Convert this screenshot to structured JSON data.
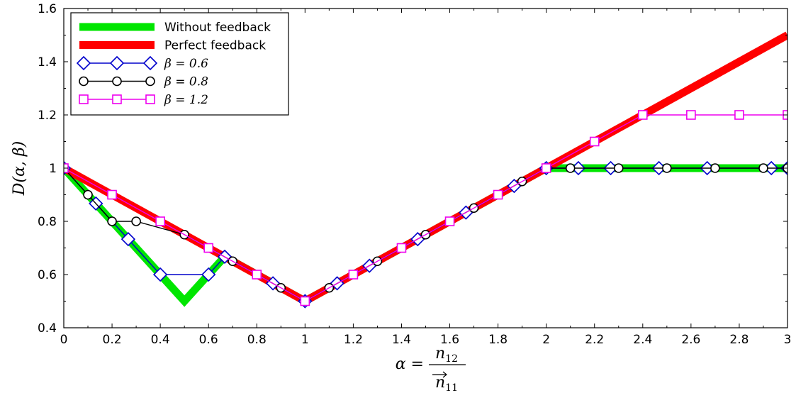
{
  "chart_data": {
    "type": "line",
    "xlabel": "α = n12 / n→11",
    "xlabel_parts": {
      "lhs": "α =",
      "num": "n",
      "num_sub": "12",
      "den": "n",
      "den_sub": "11"
    },
    "ylabel": "D(α, β)",
    "xlim": [
      0,
      3
    ],
    "ylim": [
      0.4,
      1.6
    ],
    "xticks": [
      "0",
      "0.2",
      "0.4",
      "0.6",
      "0.8",
      "1",
      "1.2",
      "1.4",
      "1.6",
      "1.8",
      "2",
      "2.2",
      "2.4",
      "2.6",
      "2.8",
      "3"
    ],
    "yticks": [
      "0.4",
      "0.6",
      "0.8",
      "1",
      "1.2",
      "1.4",
      "1.6"
    ],
    "legend_position": "top-left",
    "grid": false,
    "series": [
      {
        "name": "Without feedback",
        "color": "#00e600",
        "style": "thick-line",
        "x": [
          0,
          0.5,
          0.667,
          1,
          2,
          3
        ],
        "y": [
          1,
          0.5,
          0.667,
          0.5,
          1,
          1
        ]
      },
      {
        "name": "Perfect feedback",
        "color": "#ff0000",
        "style": "thick-line",
        "x": [
          0,
          1,
          3
        ],
        "y": [
          1,
          0.5,
          1.5
        ]
      },
      {
        "name": "β = 0.6",
        "color": "#0000cc",
        "marker": "diamond",
        "x": [
          0,
          0.133,
          0.267,
          0.4,
          0.6,
          0.667,
          0.867,
          1,
          1.133,
          1.267,
          1.467,
          1.667,
          1.867,
          2,
          2.133,
          2.267,
          2.467,
          2.667,
          2.933,
          3
        ],
        "y": [
          1,
          0.867,
          0.733,
          0.6,
          0.6,
          0.667,
          0.567,
          0.5,
          0.567,
          0.633,
          0.733,
          0.833,
          0.933,
          1,
          1,
          1,
          1,
          1,
          1,
          1
        ]
      },
      {
        "name": "β = 0.8",
        "color": "#000000",
        "marker": "circle",
        "x": [
          0,
          0.1,
          0.2,
          0.3,
          0.5,
          0.7,
          0.9,
          1,
          1.1,
          1.3,
          1.5,
          1.7,
          1.9,
          2,
          2.1,
          2.3,
          2.5,
          2.7,
          2.9,
          3
        ],
        "y": [
          1,
          0.9,
          0.8,
          0.8,
          0.75,
          0.65,
          0.55,
          0.5,
          0.55,
          0.65,
          0.75,
          0.85,
          0.95,
          1,
          1,
          1,
          1,
          1,
          1,
          1
        ]
      },
      {
        "name": "β = 1.2",
        "color": "#ee00ee",
        "marker": "square",
        "x": [
          0,
          0.2,
          0.4,
          0.6,
          0.8,
          1,
          1.2,
          1.4,
          1.6,
          1.8,
          2,
          2.2,
          2.4,
          2.6,
          2.8,
          3
        ],
        "y": [
          1,
          0.9,
          0.8,
          0.7,
          0.6,
          0.5,
          0.6,
          0.7,
          0.8,
          0.9,
          1,
          1.1,
          1.2,
          1.2,
          1.2,
          1.2
        ]
      }
    ]
  }
}
